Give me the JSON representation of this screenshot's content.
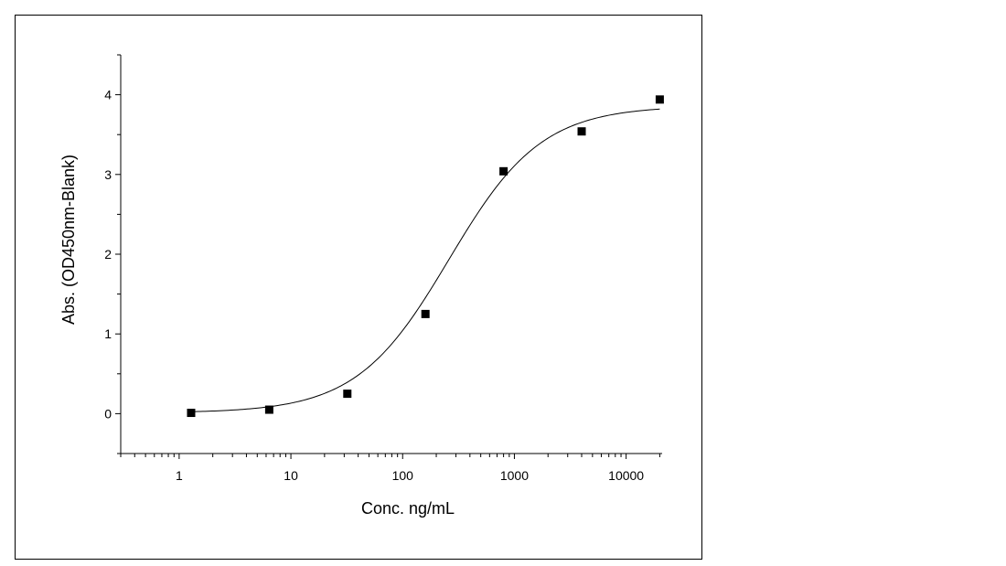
{
  "chart_data": {
    "type": "scatter",
    "title": "",
    "xlabel": "Conc. ng/mL",
    "ylabel": "Abs. (OD450nm-Blank)",
    "x_scale": "log",
    "xlim": [
      0.3,
      21000
    ],
    "ylim": [
      -0.5,
      4.5
    ],
    "x_ticks": [
      1,
      10,
      100,
      1000,
      10000
    ],
    "x_tick_labels": [
      "1",
      "10",
      "100",
      "1000",
      "10000"
    ],
    "y_ticks": [
      0,
      1,
      2,
      3,
      4
    ],
    "y_tick_labels": [
      "0",
      "1",
      "2",
      "3",
      "4"
    ],
    "grid": false,
    "legend": "none",
    "series": [
      {
        "marker": "square",
        "x": [
          1.28,
          6.4,
          32,
          160,
          800,
          4000,
          20000
        ],
        "y": [
          0.01,
          0.05,
          0.25,
          1.25,
          3.04,
          3.54,
          3.94
        ]
      }
    ],
    "fit_curve": {
      "model": "4PL",
      "bottom": 0.01,
      "top": 3.86,
      "ec50": 260,
      "hill": 1.05,
      "x_range": [
        1.28,
        20000
      ]
    }
  }
}
